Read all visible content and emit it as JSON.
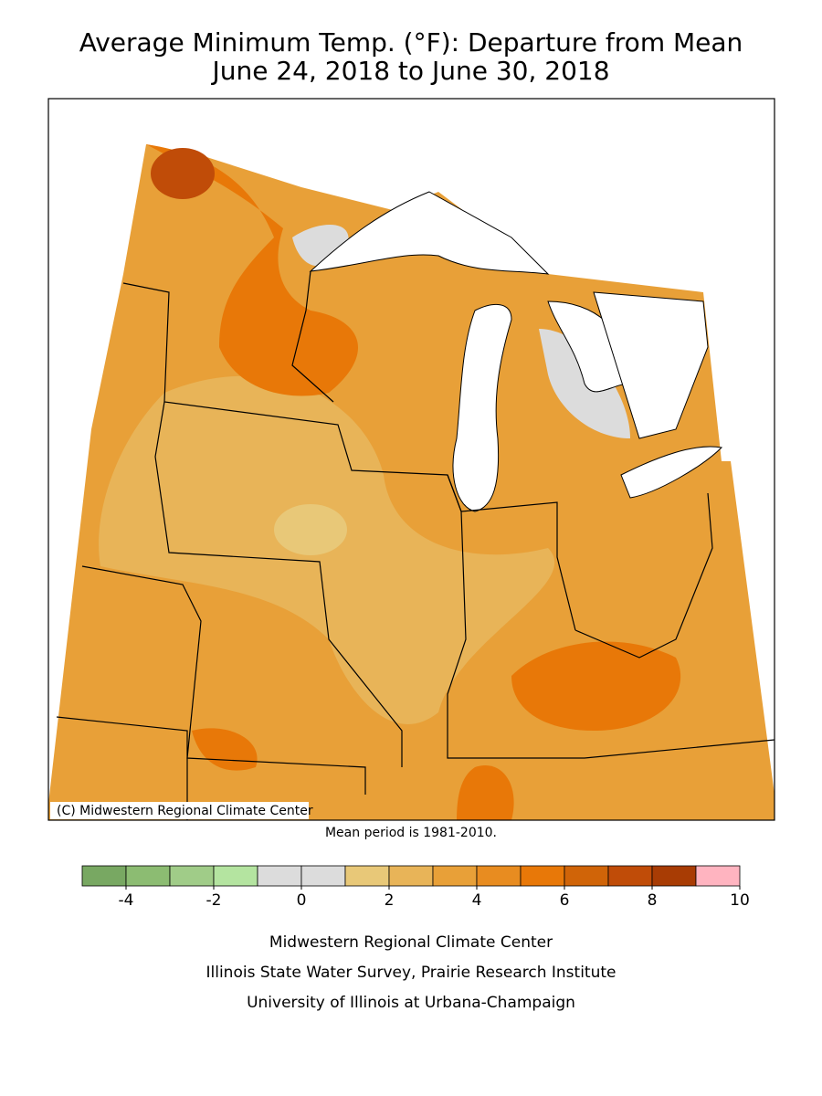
{
  "header": {
    "title": "Average Minimum Temp. (°F): Departure from Mean",
    "subtitle": "June 24, 2018 to June 30, 2018"
  },
  "map": {
    "copyright": "(C) Midwestern Regional Climate Center",
    "note": "Mean period is 1981-2010.",
    "legend": {
      "lim": [
        -5,
        10
      ],
      "bins": [
        -5,
        -4,
        -3,
        -2,
        -1,
        0,
        1,
        2,
        3,
        4,
        5,
        6,
        7,
        8,
        9,
        10
      ],
      "colors": [
        "#78a862",
        "#8cbc72",
        "#a0cc88",
        "#b4e4a0",
        "#dcdcdc",
        "#dcdcdc",
        "#e8c878",
        "#e8b458",
        "#e8a038",
        "#e88c20",
        "#e87808",
        "#d06408",
        "#c04c08",
        "#a83c04",
        "#ffb4c0"
      ],
      "ticks": [
        -4,
        -2,
        0,
        2,
        4,
        6,
        8,
        10
      ]
    }
  },
  "footer": {
    "lines": [
      "Midwestern Regional Climate Center",
      "Illinois State Water Survey, Prairie Research Institute",
      "University of Illinois at Urbana-Champaign"
    ]
  }
}
